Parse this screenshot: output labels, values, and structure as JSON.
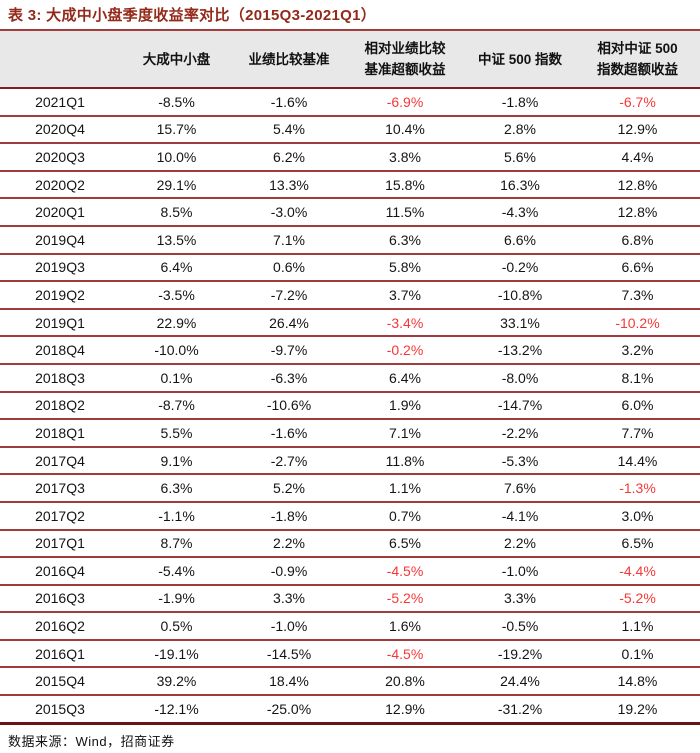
{
  "title": "表 3:  大成中小盘季度收益率对比（2015Q3-2021Q1）",
  "colors": {
    "title_color": "#93291A",
    "header_bg": "#E8E8E8",
    "header_line": "#7E1E1E",
    "row_line": "#A03C3C",
    "bottom_line": "#6B1212",
    "negative_red": "#F83737"
  },
  "table": {
    "columns": [
      {
        "lines": [
          ""
        ]
      },
      {
        "lines": [
          "大成中小盘"
        ]
      },
      {
        "lines": [
          "业绩比较基准"
        ]
      },
      {
        "lines": [
          "相对业绩比较",
          "基准超额收益"
        ]
      },
      {
        "lines": [
          "中证 500 指数"
        ]
      },
      {
        "lines": [
          "相对中证 500",
          "指数超额收益"
        ]
      }
    ],
    "rows": [
      {
        "quarter": "2021Q1",
        "values": [
          "-8.5%",
          "-1.6%",
          "-6.9%",
          "-1.8%",
          "-6.7%"
        ],
        "red": [
          2,
          4
        ]
      },
      {
        "quarter": "2020Q4",
        "values": [
          "15.7%",
          "5.4%",
          "10.4%",
          "2.8%",
          "12.9%"
        ],
        "red": []
      },
      {
        "quarter": "2020Q3",
        "values": [
          "10.0%",
          "6.2%",
          "3.8%",
          "5.6%",
          "4.4%"
        ],
        "red": []
      },
      {
        "quarter": "2020Q2",
        "values": [
          "29.1%",
          "13.3%",
          "15.8%",
          "16.3%",
          "12.8%"
        ],
        "red": []
      },
      {
        "quarter": "2020Q1",
        "values": [
          "8.5%",
          "-3.0%",
          "11.5%",
          "-4.3%",
          "12.8%"
        ],
        "red": []
      },
      {
        "quarter": "2019Q4",
        "values": [
          "13.5%",
          "7.1%",
          "6.3%",
          "6.6%",
          "6.8%"
        ],
        "red": []
      },
      {
        "quarter": "2019Q3",
        "values": [
          "6.4%",
          "0.6%",
          "5.8%",
          "-0.2%",
          "6.6%"
        ],
        "red": []
      },
      {
        "quarter": "2019Q2",
        "values": [
          "-3.5%",
          "-7.2%",
          "3.7%",
          "-10.8%",
          "7.3%"
        ],
        "red": []
      },
      {
        "quarter": "2019Q1",
        "values": [
          "22.9%",
          "26.4%",
          "-3.4%",
          "33.1%",
          "-10.2%"
        ],
        "red": [
          2,
          4
        ]
      },
      {
        "quarter": "2018Q4",
        "values": [
          "-10.0%",
          "-9.7%",
          "-0.2%",
          "-13.2%",
          "3.2%"
        ],
        "red": [
          2
        ]
      },
      {
        "quarter": "2018Q3",
        "values": [
          "0.1%",
          "-6.3%",
          "6.4%",
          "-8.0%",
          "8.1%"
        ],
        "red": []
      },
      {
        "quarter": "2018Q2",
        "values": [
          "-8.7%",
          "-10.6%",
          "1.9%",
          "-14.7%",
          "6.0%"
        ],
        "red": []
      },
      {
        "quarter": "2018Q1",
        "values": [
          "5.5%",
          "-1.6%",
          "7.1%",
          "-2.2%",
          "7.7%"
        ],
        "red": []
      },
      {
        "quarter": "2017Q4",
        "values": [
          "9.1%",
          "-2.7%",
          "11.8%",
          "-5.3%",
          "14.4%"
        ],
        "red": []
      },
      {
        "quarter": "2017Q3",
        "values": [
          "6.3%",
          "5.2%",
          "1.1%",
          "7.6%",
          "-1.3%"
        ],
        "red": [
          4
        ]
      },
      {
        "quarter": "2017Q2",
        "values": [
          "-1.1%",
          "-1.8%",
          "0.7%",
          "-4.1%",
          "3.0%"
        ],
        "red": []
      },
      {
        "quarter": "2017Q1",
        "values": [
          "8.7%",
          "2.2%",
          "6.5%",
          "2.2%",
          "6.5%"
        ],
        "red": []
      },
      {
        "quarter": "2016Q4",
        "values": [
          "-5.4%",
          "-0.9%",
          "-4.5%",
          "-1.0%",
          "-4.4%"
        ],
        "red": [
          2,
          4
        ]
      },
      {
        "quarter": "2016Q3",
        "values": [
          "-1.9%",
          "3.3%",
          "-5.2%",
          "3.3%",
          "-5.2%"
        ],
        "red": [
          2,
          4
        ]
      },
      {
        "quarter": "2016Q2",
        "values": [
          "0.5%",
          "-1.0%",
          "1.6%",
          "-0.5%",
          "1.1%"
        ],
        "red": []
      },
      {
        "quarter": "2016Q1",
        "values": [
          "-19.1%",
          "-14.5%",
          "-4.5%",
          "-19.2%",
          "0.1%"
        ],
        "red": [
          2
        ]
      },
      {
        "quarter": "2015Q4",
        "values": [
          "39.2%",
          "18.4%",
          "20.8%",
          "24.4%",
          "14.8%"
        ],
        "red": []
      },
      {
        "quarter": "2015Q3",
        "values": [
          "-12.1%",
          "-25.0%",
          "12.9%",
          "-31.2%",
          "19.2%"
        ],
        "red": []
      }
    ]
  },
  "source": "数据来源：Wind，招商证券"
}
